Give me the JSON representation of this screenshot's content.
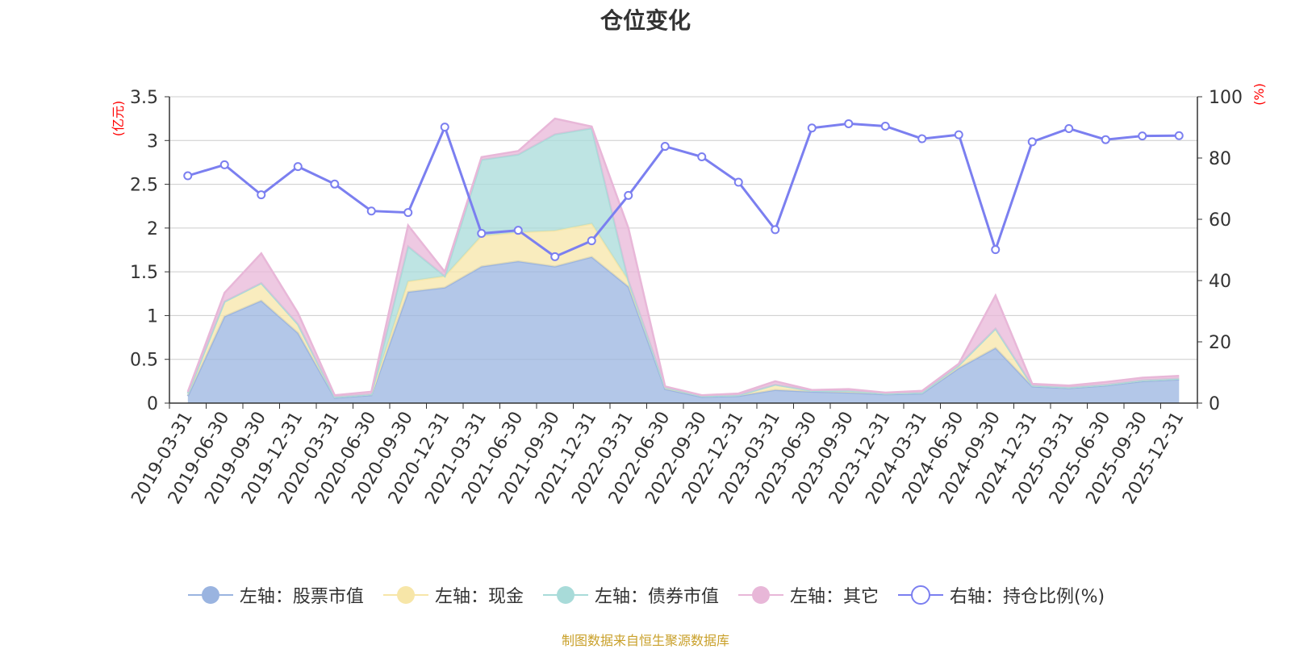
{
  "chart_data": {
    "type": "area",
    "title": "仓位变化",
    "left_axis_unit": "(亿元)",
    "right_axis_unit": "(%)",
    "left_ylim": [
      0,
      3.5
    ],
    "left_yticks": [
      "0",
      "0.5",
      "1",
      "1.5",
      "2",
      "2.5",
      "3",
      "3.5"
    ],
    "right_ylim": [
      0,
      100
    ],
    "right_yticks": [
      "0",
      "20",
      "40",
      "60",
      "80",
      "100"
    ],
    "grid": true,
    "legend_position": "bottom",
    "x_tick_labels": [
      "2019-03-31",
      "2019-06-30",
      "2019-09-30",
      "2019-12-31",
      "2020-03-31",
      "2020-06-30",
      "2020-09-30",
      "2020-12-31",
      "2021-03-31",
      "2021-06-30",
      "2021-09-30",
      "2021-12-31",
      "2022-03-31",
      "2022-06-30",
      "2022-09-30",
      "2022-12-31",
      "2023-03-31",
      "2023-06-30",
      "2023-09-30",
      "2023-12-31",
      "2024-03-31",
      "2024-06-30",
      "2024-09-30",
      "2024-12-31",
      "2025-03-31",
      "2025-06-30",
      "2025-09-30",
      "2025-12-31"
    ],
    "series": [
      {
        "name": "左轴：股票市值",
        "axis": "left",
        "kind": "area",
        "color": "#9ab4e0",
        "values": [
          0.08,
          0.99,
          1.17,
          0.8,
          0.06,
          0.09,
          1.27,
          1.32,
          1.56,
          1.62,
          1.56,
          1.67,
          1.33,
          0.16,
          0.07,
          0.08,
          0.15,
          0.13,
          0.12,
          0.1,
          0.11,
          0.4,
          0.63,
          0.19,
          0.17,
          0.2,
          0.25,
          0.27
        ]
      },
      {
        "name": "左轴：现金",
        "axis": "left",
        "kind": "area",
        "color": "#f7e6a8",
        "values": [
          0.03,
          0.17,
          0.2,
          0.1,
          0.01,
          0.01,
          0.12,
          0.13,
          0.35,
          0.33,
          0.41,
          0.38,
          0.07,
          0.02,
          0.01,
          0.01,
          0.06,
          0.01,
          0.02,
          0.01,
          0.01,
          0.03,
          0.22,
          0.01,
          0.01,
          0.01,
          0.01,
          0.01
        ]
      },
      {
        "name": "左轴：债券市值",
        "axis": "left",
        "kind": "area",
        "color": "#a8dbd9",
        "values": [
          0,
          0,
          0,
          0,
          0,
          0,
          0.4,
          0,
          0.87,
          0.89,
          1.1,
          1.09,
          0,
          0,
          0,
          0,
          0,
          0,
          0,
          0,
          0,
          0,
          0,
          0,
          0,
          0,
          0,
          0
        ]
      },
      {
        "name": "左轴：其它",
        "axis": "left",
        "kind": "area",
        "color": "#e8b7d8",
        "values": [
          0.02,
          0.1,
          0.34,
          0.13,
          0.02,
          0.03,
          0.24,
          0.05,
          0.03,
          0.04,
          0.18,
          0.02,
          0.6,
          0.01,
          0.01,
          0.02,
          0.04,
          0.01,
          0.02,
          0.01,
          0.02,
          0.02,
          0.38,
          0.02,
          0.02,
          0.03,
          0.03,
          0.03
        ]
      },
      {
        "name": "右轴：持仓比例(%)",
        "axis": "right",
        "kind": "line",
        "color": "#7b7ff0",
        "values": [
          74.2,
          77.8,
          68.0,
          77.2,
          71.5,
          62.7,
          62.2,
          90.1,
          55.4,
          56.4,
          47.8,
          53.0,
          67.8,
          83.8,
          80.4,
          72.1,
          56.6,
          89.8,
          91.2,
          90.4,
          86.3,
          87.6,
          50.1,
          85.3,
          89.6,
          86.0,
          87.2,
          87.3
        ]
      }
    ]
  },
  "source_note": "制图数据来自恒生聚源数据库"
}
